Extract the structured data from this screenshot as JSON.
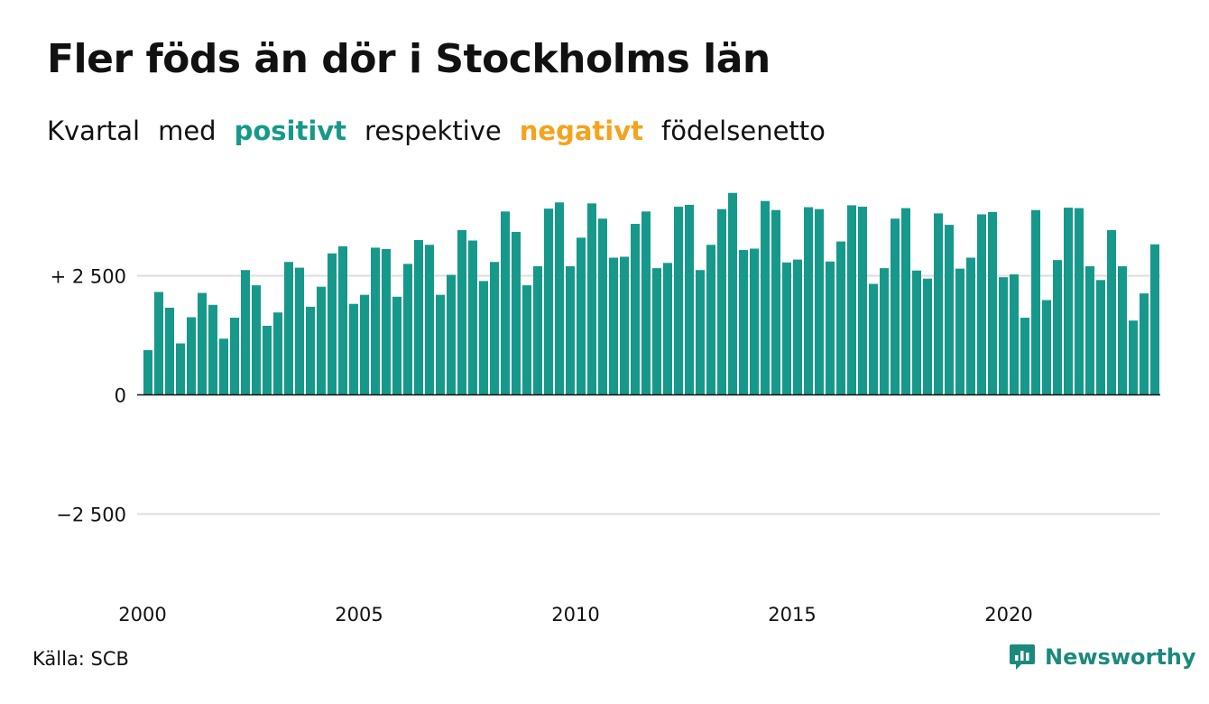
{
  "header": {
    "title": "Fler föds än dör i Stockholms län",
    "subtitle": {
      "w1": "Kvartal",
      "w2": "med",
      "positive": "positivt",
      "w3": "respektive",
      "negative": "negativt",
      "w4": "födelsenetto"
    }
  },
  "footer": {
    "source": "Källa: SCB",
    "brand": "Newsworthy"
  },
  "colors": {
    "positive": "#16998a",
    "negative": "#f5a21d",
    "grid": "#dddddd",
    "zero_line": "#111111"
  },
  "chart_data": {
    "type": "bar",
    "title": "Fler föds än dör i Stockholms län",
    "xlabel": "",
    "ylabel": "",
    "ylim": [
      -4500,
      4500
    ],
    "grid": true,
    "x_start": "2000 Q1",
    "x_ticks": [
      {
        "value": 2000,
        "label": "2000"
      },
      {
        "value": 2005,
        "label": "2005"
      },
      {
        "value": 2010,
        "label": "2010"
      },
      {
        "value": 2015,
        "label": "2015"
      },
      {
        "value": 2020,
        "label": "2020"
      }
    ],
    "y_ticks": [
      {
        "value": 2500,
        "label": "+ 2 500"
      },
      {
        "value": 0,
        "label": "0"
      },
      {
        "value": -2500,
        "label": "−2 500"
      }
    ],
    "values": [
      940,
      2160,
      1830,
      1080,
      1630,
      2140,
      1890,
      1180,
      1620,
      2620,
      2300,
      1450,
      1730,
      2790,
      2670,
      1850,
      2270,
      2970,
      3120,
      1910,
      2100,
      3090,
      3060,
      2060,
      2750,
      3250,
      3150,
      2100,
      2520,
      3460,
      3240,
      2390,
      2790,
      3850,
      3420,
      2300,
      2700,
      3910,
      4040,
      2700,
      3300,
      4020,
      3700,
      2880,
      2900,
      3590,
      3850,
      2660,
      2770,
      3950,
      3990,
      2620,
      3150,
      3900,
      4240,
      3040,
      3070,
      4070,
      3880,
      2780,
      2840,
      3940,
      3900,
      2800,
      3220,
      3980,
      3950,
      2330,
      2660,
      3700,
      3920,
      2610,
      2440,
      3810,
      3570,
      2650,
      2880,
      3790,
      3840,
      2470,
      2530,
      1620,
      3880,
      1990,
      2830,
      3930,
      3920,
      2700,
      2410,
      3460,
      2700,
      1560,
      2130,
      3160
    ]
  }
}
